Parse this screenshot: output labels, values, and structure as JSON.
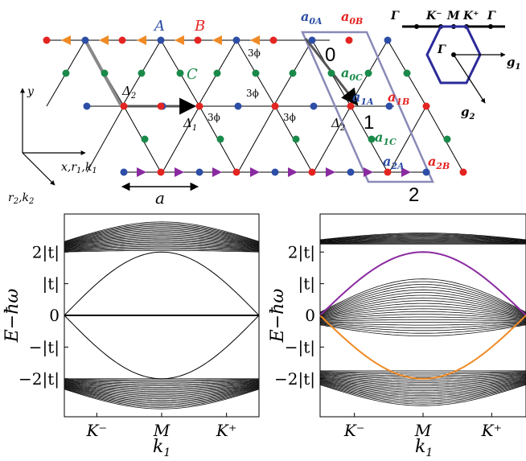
{
  "lattice": {
    "sub_a": "A",
    "sub_b": "B",
    "sub_c": "C",
    "delta2": "Δ2",
    "delta1": "Δ1",
    "phase_3phi": "3ϕ",
    "a0a": "a0A",
    "a0b": "a0B",
    "a0c": "a0C",
    "a1a": "a1A",
    "a1b": "a1B",
    "a1c": "a1C",
    "a2a": "a2A",
    "a2b": "a2B",
    "cell0": "0",
    "cell1": "1",
    "cell2": "2",
    "lattice_const": "a",
    "axis_y": "y",
    "axis_x": "x,r1,k1",
    "axis_diag": "r2,k2",
    "colors": {
      "A": "#2d4ea6",
      "B": "#e32421",
      "C": "#1a8a4a",
      "arrow_orange": "#f08a24",
      "arrow_purple": "#8a2aa0",
      "cell": "#8a8ab8"
    }
  },
  "bz": {
    "path_labels": [
      "Γ",
      "K⁻",
      "M",
      "K⁺",
      "Γ"
    ],
    "gamma": "Γ",
    "g1": "g1",
    "g2": "g2",
    "hex_color": "#2b2a9a"
  },
  "chart_data": [
    {
      "type": "line",
      "title": "",
      "xlabel": "k1",
      "ylabel": "E−ħω",
      "x_ticks": [
        "K⁻",
        "M",
        "K⁺"
      ],
      "y_ticks": [
        "2|t|",
        "|t|",
        "0",
        "−|t|",
        "−2|t|"
      ],
      "ylim": [
        -3.2,
        3.2
      ],
      "series": [
        {
          "band": "upper bulk",
          "range": [
            2.0,
            2.95
          ]
        },
        {
          "band": "flat",
          "value": 0
        },
        {
          "band": "edge",
          "peak": 2.0,
          "trough": -2.0
        },
        {
          "band": "lower bulk",
          "range": [
            -2.95,
            -2.0
          ]
        }
      ]
    },
    {
      "type": "line",
      "title": "",
      "xlabel": "k1",
      "ylabel": "E−ħω",
      "x_ticks": [
        "K⁻",
        "M",
        "K⁺"
      ],
      "y_ticks": [
        "2|t|",
        "|t|",
        "0",
        "−|t|",
        "−2|t|"
      ],
      "ylim": [
        -3.2,
        3.2
      ],
      "series": [
        {
          "band": "upper bulk",
          "range": [
            2.1,
            2.8
          ]
        },
        {
          "band": "middle bulk",
          "range": [
            -0.7,
            1.0
          ]
        },
        {
          "band": "lower bulk",
          "range": [
            -2.9,
            -1.6
          ]
        },
        {
          "band": "edge",
          "color": "#8a2aa0",
          "at_M": 2.0
        },
        {
          "band": "edge",
          "color": "#f08a24",
          "at_M": -2.0
        }
      ]
    }
  ]
}
